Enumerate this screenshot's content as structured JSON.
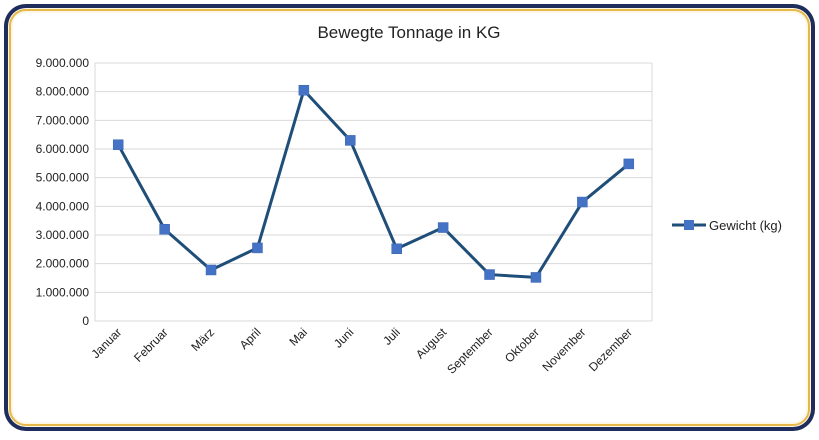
{
  "chart_data": {
    "type": "line",
    "title": "Bewegte Tonnage in KG",
    "xlabel": "",
    "ylabel": "",
    "categories": [
      "Januar",
      "Februar",
      "März",
      "April",
      "Mai",
      "Juni",
      "Juli",
      "August",
      "September",
      "Oktober",
      "November",
      "Dezember"
    ],
    "series": [
      {
        "name": "Gewicht (kg)",
        "values": [
          6150000,
          3200000,
          1780000,
          2550000,
          8050000,
          6300000,
          2520000,
          3260000,
          1620000,
          1520000,
          4150000,
          5480000
        ],
        "color": "#1f4e79",
        "marker_color": "#4472c4"
      }
    ],
    "ylim": [
      0,
      9000000
    ],
    "yticks": [
      "0",
      "1.000.000",
      "2.000.000",
      "3.000.000",
      "4.000.000",
      "5.000.000",
      "6.000.000",
      "7.000.000",
      "8.000.000",
      "9.000.000"
    ],
    "grid": true,
    "legend": "right",
    "frame_color": "#1f2d5c",
    "frame_fill": "#fdf7e6"
  }
}
